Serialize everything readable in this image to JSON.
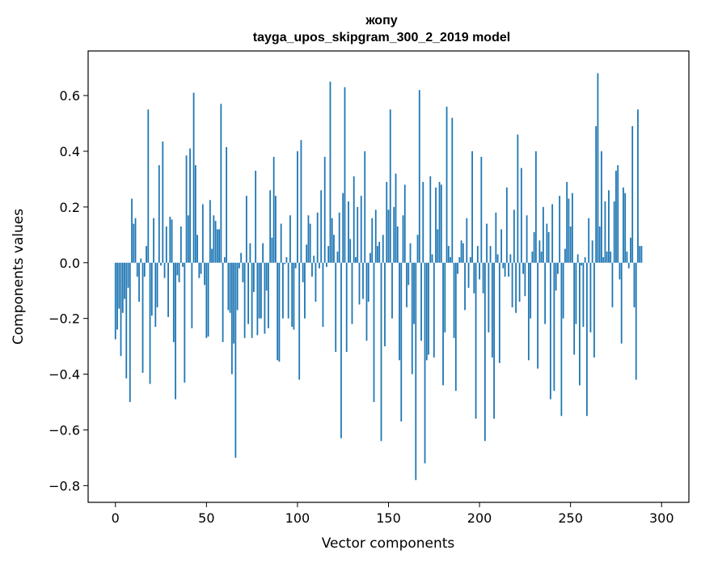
{
  "chart_data": {
    "type": "bar",
    "title": "жопу",
    "subtitle": "tayga_upos_skipgram_300_2_2019 model",
    "xlabel": "Vector components",
    "ylabel": "Components values",
    "xlim": [
      -15,
      315
    ],
    "ylim": [
      -0.86,
      0.76
    ],
    "xticks": [
      0,
      50,
      100,
      150,
      200,
      250,
      300
    ],
    "yticks": [
      -0.8,
      -0.6,
      -0.4,
      -0.2,
      0.0,
      0.2,
      0.4,
      0.6
    ],
    "ytick_labels": [
      "−0.8",
      "−0.6",
      "−0.4",
      "−0.2",
      "0.0",
      "0.2",
      "0.4",
      "0.6"
    ],
    "bar_color": "#1f77b4",
    "values": [
      -0.275,
      -0.24,
      -0.165,
      -0.335,
      -0.18,
      -0.13,
      -0.415,
      -0.09,
      -0.5,
      0.23,
      0.14,
      0.16,
      -0.05,
      -0.14,
      0.015,
      -0.395,
      -0.05,
      0.06,
      0.55,
      -0.435,
      -0.19,
      0.16,
      -0.23,
      -0.16,
      0.35,
      -0.01,
      0.435,
      -0.055,
      0.13,
      -0.195,
      0.165,
      0.155,
      -0.285,
      -0.49,
      -0.045,
      -0.07,
      0.13,
      -0.015,
      -0.43,
      0.385,
      0.17,
      0.41,
      -0.235,
      0.61,
      0.35,
      0.1,
      -0.055,
      -0.04,
      0.21,
      -0.08,
      -0.27,
      -0.265,
      0.225,
      0.05,
      0.17,
      0.15,
      0.12,
      0.12,
      0.57,
      -0.285,
      0.02,
      0.415,
      -0.17,
      -0.18,
      -0.4,
      -0.29,
      -0.7,
      -0.17,
      -0.02,
      0.035,
      -0.07,
      -0.27,
      0.24,
      -0.22,
      0.07,
      -0.27,
      -0.105,
      0.33,
      -0.26,
      -0.2,
      -0.2,
      0.07,
      -0.255,
      -0.1,
      -0.235,
      0.26,
      0.09,
      0.38,
      0.24,
      -0.35,
      -0.355,
      0.14,
      -0.2,
      -0.005,
      0.02,
      -0.2,
      0.17,
      -0.23,
      -0.24,
      -0.02,
      0.4,
      -0.42,
      0.44,
      -0.07,
      -0.2,
      0.065,
      0.17,
      0.14,
      -0.05,
      0.025,
      -0.14,
      0.18,
      -0.02,
      0.26,
      -0.23,
      0.38,
      -0.015,
      0.06,
      0.65,
      0.16,
      0.1,
      -0.32,
      0.04,
      0.18,
      -0.63,
      0.25,
      0.63,
      -0.32,
      0.22,
      0.085,
      -0.22,
      0.31,
      0.02,
      0.2,
      -0.15,
      0.24,
      -0.13,
      0.4,
      -0.28,
      -0.14,
      0.035,
      0.16,
      -0.5,
      0.19,
      0.06,
      0.075,
      -0.64,
      0.1,
      -0.3,
      0.29,
      0.19,
      0.55,
      -0.2,
      0.2,
      0.32,
      0.13,
      -0.35,
      -0.57,
      0.17,
      0.28,
      -0.16,
      -0.08,
      0.07,
      -0.4,
      -0.22,
      -0.78,
      0.1,
      0.62,
      -0.28,
      0.29,
      -0.72,
      -0.35,
      -0.33,
      0.31,
      0.03,
      -0.34,
      0.27,
      0.12,
      0.29,
      0.28,
      -0.44,
      -0.25,
      0.56,
      0.06,
      0.02,
      0.52,
      -0.27,
      -0.46,
      -0.04,
      0.02,
      0.08,
      0.07,
      -0.17,
      0.16,
      -0.09,
      0.02,
      0.4,
      -0.11,
      -0.56,
      0.06,
      -0.06,
      0.38,
      -0.11,
      -0.64,
      0.14,
      -0.25,
      0.06,
      -0.34,
      -0.56,
      0.18,
      0.03,
      -0.36,
      0.12,
      -0.02,
      -0.05,
      0.27,
      -0.05,
      0.03,
      -0.16,
      0.19,
      -0.18,
      0.46,
      -0.14,
      0.34,
      -0.04,
      -0.12,
      0.17,
      -0.35,
      -0.2,
      0.04,
      0.11,
      0.4,
      -0.38,
      0.08,
      0.04,
      0.2,
      -0.22,
      0.14,
      0.11,
      -0.49,
      0.21,
      -0.46,
      -0.1,
      -0.04,
      0.24,
      -0.55,
      -0.2,
      0.05,
      0.29,
      0.23,
      0.13,
      0.25,
      -0.33,
      -0.22,
      0.03,
      -0.44,
      -0.01,
      -0.23,
      0.02,
      -0.55,
      0.16,
      -0.25,
      0.08,
      -0.34,
      0.49,
      0.68,
      0.13,
      0.4,
      0.02,
      0.22,
      0.04,
      0.26,
      0.04,
      -0.16,
      0.22,
      0.33,
      0.35,
      -0.06,
      -0.29,
      0.27,
      0.25,
      0.04,
      -0.02,
      0.09,
      0.49,
      -0.16,
      -0.42,
      0.55,
      0.06,
      0.06
    ]
  }
}
